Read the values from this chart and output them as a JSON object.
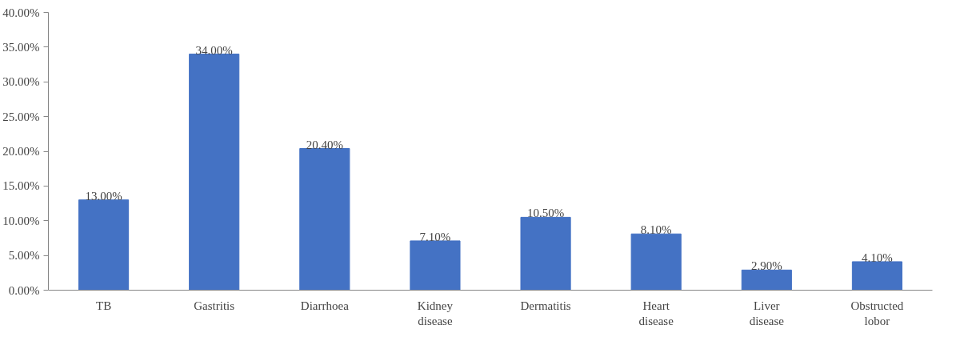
{
  "chart_data": {
    "type": "bar",
    "categories": [
      "TB",
      "Gastritis",
      "Diarrhoea",
      "Kidney disease",
      "Dermatitis",
      "Heart disease",
      "Liver disease",
      "Obstructed lobor"
    ],
    "values": [
      13,
      34,
      20.4,
      7.1,
      10.5,
      8.1,
      2.9,
      4.1
    ],
    "value_labels": [
      "13.00%",
      "34.00%",
      "20.40%",
      "7.10%",
      "10.50%",
      "8.10%",
      "2.90%",
      "4.10%"
    ],
    "color": "#4472c4",
    "ylim": [
      0,
      40
    ],
    "yticks": [
      {
        "value": 0,
        "label": "0.00%"
      },
      {
        "value": 5,
        "label": "5.00%"
      },
      {
        "value": 10,
        "label": "10.00%"
      },
      {
        "value": 15,
        "label": "15.00%"
      },
      {
        "value": 20,
        "label": "20.00%"
      },
      {
        "value": 25,
        "label": "25.00%"
      },
      {
        "value": 30,
        "label": "30.00%"
      },
      {
        "value": 35,
        "label": "35.00%"
      },
      {
        "value": 40,
        "label": "40.00%"
      }
    ],
    "grid": false
  }
}
